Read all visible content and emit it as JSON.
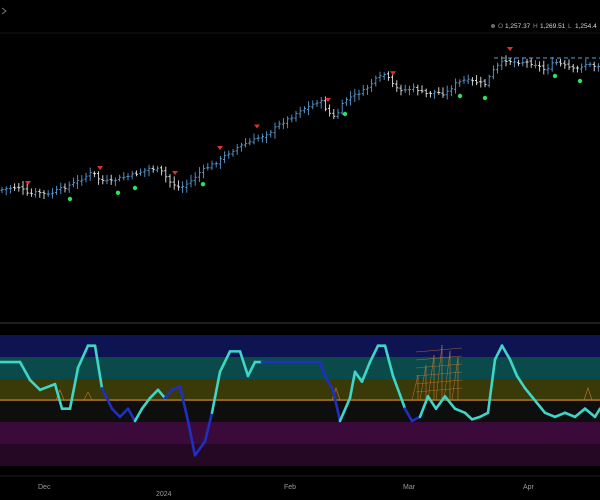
{
  "ohlc_readout": [
    {
      "key": "O",
      "value": "1,257.37"
    },
    {
      "key": "H",
      "value": "1,269.51"
    },
    {
      "key": "L",
      "value": "1,254.4"
    }
  ],
  "x_ticks": [
    "Dec",
    "2024",
    "Feb",
    "Mar",
    "Apr"
  ],
  "colors": {
    "up_bar": "#5b9bd5",
    "down_bar": "#e6e6e6",
    "sell_marker": "#e0302a",
    "buy_marker": "#2ee05a",
    "osc_high": "#3fd6c8",
    "osc_low": "#1f2fc0",
    "mid_line": "#c8782e",
    "band_top": "#0e1452",
    "band_teal": "#0b4a4a",
    "band_olive": "#3a3a08",
    "band_dark": "#0e0e0e",
    "band_purple": "#3a0b3a",
    "band_plum": "#240824"
  },
  "chart_data": [
    {
      "type": "ohlc",
      "x": [
        "Dec",
        "2024",
        "Feb",
        "Mar",
        "Apr"
      ],
      "price_path": [
        [
          0,
          190
        ],
        [
          10,
          188
        ],
        [
          20,
          187
        ],
        [
          28,
          195
        ],
        [
          38,
          192
        ],
        [
          48,
          195
        ],
        [
          58,
          190
        ],
        [
          70,
          185
        ],
        [
          80,
          180
        ],
        [
          92,
          172
        ],
        [
          100,
          180
        ],
        [
          110,
          182
        ],
        [
          120,
          178
        ],
        [
          130,
          176
        ],
        [
          140,
          172
        ],
        [
          150,
          168
        ],
        [
          160,
          170
        ],
        [
          170,
          182
        ],
        [
          180,
          188
        ],
        [
          190,
          182
        ],
        [
          200,
          172
        ],
        [
          210,
          166
        ],
        [
          220,
          160
        ],
        [
          230,
          152
        ],
        [
          240,
          146
        ],
        [
          250,
          142
        ],
        [
          260,
          137
        ],
        [
          270,
          132
        ],
        [
          280,
          124
        ],
        [
          290,
          118
        ],
        [
          300,
          110
        ],
        [
          310,
          106
        ],
        [
          320,
          100
        ],
        [
          328,
          112
        ],
        [
          335,
          118
        ],
        [
          345,
          100
        ],
        [
          355,
          95
        ],
        [
          365,
          90
        ],
        [
          375,
          80
        ],
        [
          385,
          74
        ],
        [
          395,
          88
        ],
        [
          405,
          90
        ],
        [
          415,
          88
        ],
        [
          425,
          94
        ],
        [
          435,
          92
        ],
        [
          445,
          94
        ],
        [
          455,
          84
        ],
        [
          465,
          80
        ],
        [
          475,
          82
        ],
        [
          485,
          84
        ],
        [
          495,
          68
        ],
        [
          505,
          60
        ],
        [
          515,
          62
        ],
        [
          525,
          62
        ],
        [
          535,
          64
        ],
        [
          545,
          70
        ],
        [
          555,
          62
        ],
        [
          565,
          66
        ],
        [
          575,
          70
        ],
        [
          585,
          64
        ],
        [
          595,
          66
        ],
        [
          600,
          66
        ]
      ],
      "sell_markers": [
        28,
        100,
        175,
        220,
        257,
        328,
        393,
        510
      ],
      "buy_markers": [
        70,
        118,
        135,
        203,
        345,
        460,
        485,
        555,
        580
      ]
    },
    {
      "type": "line",
      "name": "",
      "x": [
        0,
        20,
        30,
        40,
        55,
        62,
        70,
        78,
        88,
        95,
        102,
        112,
        120,
        128,
        135,
        142,
        150,
        158,
        165,
        172,
        180,
        188,
        195,
        205,
        212,
        220,
        230,
        240,
        248,
        255,
        262,
        270,
        280,
        295,
        310,
        320,
        325,
        333,
        340,
        350,
        355,
        362,
        370,
        378,
        385,
        393,
        400,
        405,
        412,
        420,
        428,
        436,
        445,
        455,
        465,
        472,
        480,
        488,
        495,
        502,
        510,
        517,
        525,
        535,
        545,
        555,
        565,
        575,
        585,
        595,
        600
      ],
      "y": [
        0.72,
        0.72,
        0.5,
        0.38,
        0.45,
        0.15,
        0.15,
        0.65,
        0.92,
        0.92,
        0.4,
        0.15,
        0.05,
        0.15,
        0.0,
        0.15,
        0.28,
        0.38,
        0.28,
        0.38,
        0.42,
        0.0,
        -0.42,
        -0.25,
        0.1,
        0.6,
        0.85,
        0.85,
        0.55,
        0.72,
        0.72,
        0.72,
        0.72,
        0.72,
        0.72,
        0.72,
        0.55,
        0.38,
        0.0,
        0.28,
        0.6,
        0.48,
        0.72,
        0.92,
        0.92,
        0.55,
        0.32,
        0.15,
        0.0,
        0.05,
        0.3,
        0.15,
        0.3,
        0.15,
        0.1,
        0.02,
        0.05,
        0.1,
        0.75,
        0.92,
        0.75,
        0.55,
        0.4,
        0.25,
        0.1,
        0.05,
        0.1,
        0.05,
        0.15,
        0.05,
        0.15
      ],
      "cloud_x": [
        418,
        426,
        434,
        442,
        450,
        458
      ],
      "ylim": [
        -0.55,
        1.05
      ]
    }
  ]
}
